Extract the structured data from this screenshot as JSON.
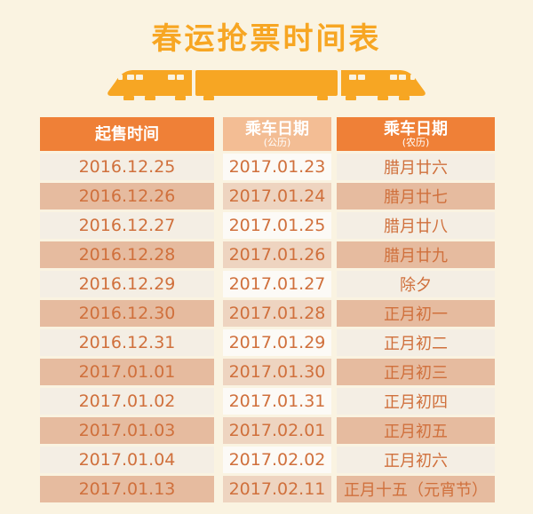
{
  "title": "春运抢票时间表",
  "table": {
    "headers": [
      {
        "label": "起售时间",
        "sub": ""
      },
      {
        "label": "乘车日期",
        "sub": "(公历)"
      },
      {
        "label": "乘车日期",
        "sub": "(农历)"
      }
    ]
  },
  "chart_data": {
    "type": "table",
    "title": "春运抢票时间表",
    "columns": [
      "起售时间",
      "乘车日期(公历)",
      "乘车日期(农历)"
    ],
    "rows": [
      [
        "2016.12.25",
        "2017.01.23",
        "腊月廿六"
      ],
      [
        "2016.12.26",
        "2017.01.24",
        "腊月廿七"
      ],
      [
        "2016.12.27",
        "2017.01.25",
        "腊月廿八"
      ],
      [
        "2016.12.28",
        "2017.01.26",
        "腊月廿九"
      ],
      [
        "2016.12.29",
        "2017.01.27",
        "除夕"
      ],
      [
        "2016.12.30",
        "2017.01.28",
        "正月初一"
      ],
      [
        "2016.12.31",
        "2017.01.29",
        "正月初二"
      ],
      [
        "2017.01.01",
        "2017.01.30",
        "正月初三"
      ],
      [
        "2017.01.02",
        "2017.01.31",
        "正月初四"
      ],
      [
        "2017.01.03",
        "2017.02.01",
        "正月初五"
      ],
      [
        "2017.01.04",
        "2017.02.02",
        "正月初六"
      ],
      [
        "2017.01.13",
        "2017.02.11",
        "正月十五（元宵节）"
      ]
    ]
  },
  "icons": {
    "train": "train-silhouette-icon"
  },
  "colors": {
    "bg": "#faf3e1",
    "accent": "#f7a623",
    "header-side": "#ef8037",
    "header-mid": "#f3bd94",
    "row-tan": "#e6bb9f",
    "row-tan-mid": "#eed4c0",
    "row-light": "#f4eee4",
    "row-light-mid": "#fcfaf6",
    "text": "#d0703c",
    "header-text": "#ffffff"
  }
}
